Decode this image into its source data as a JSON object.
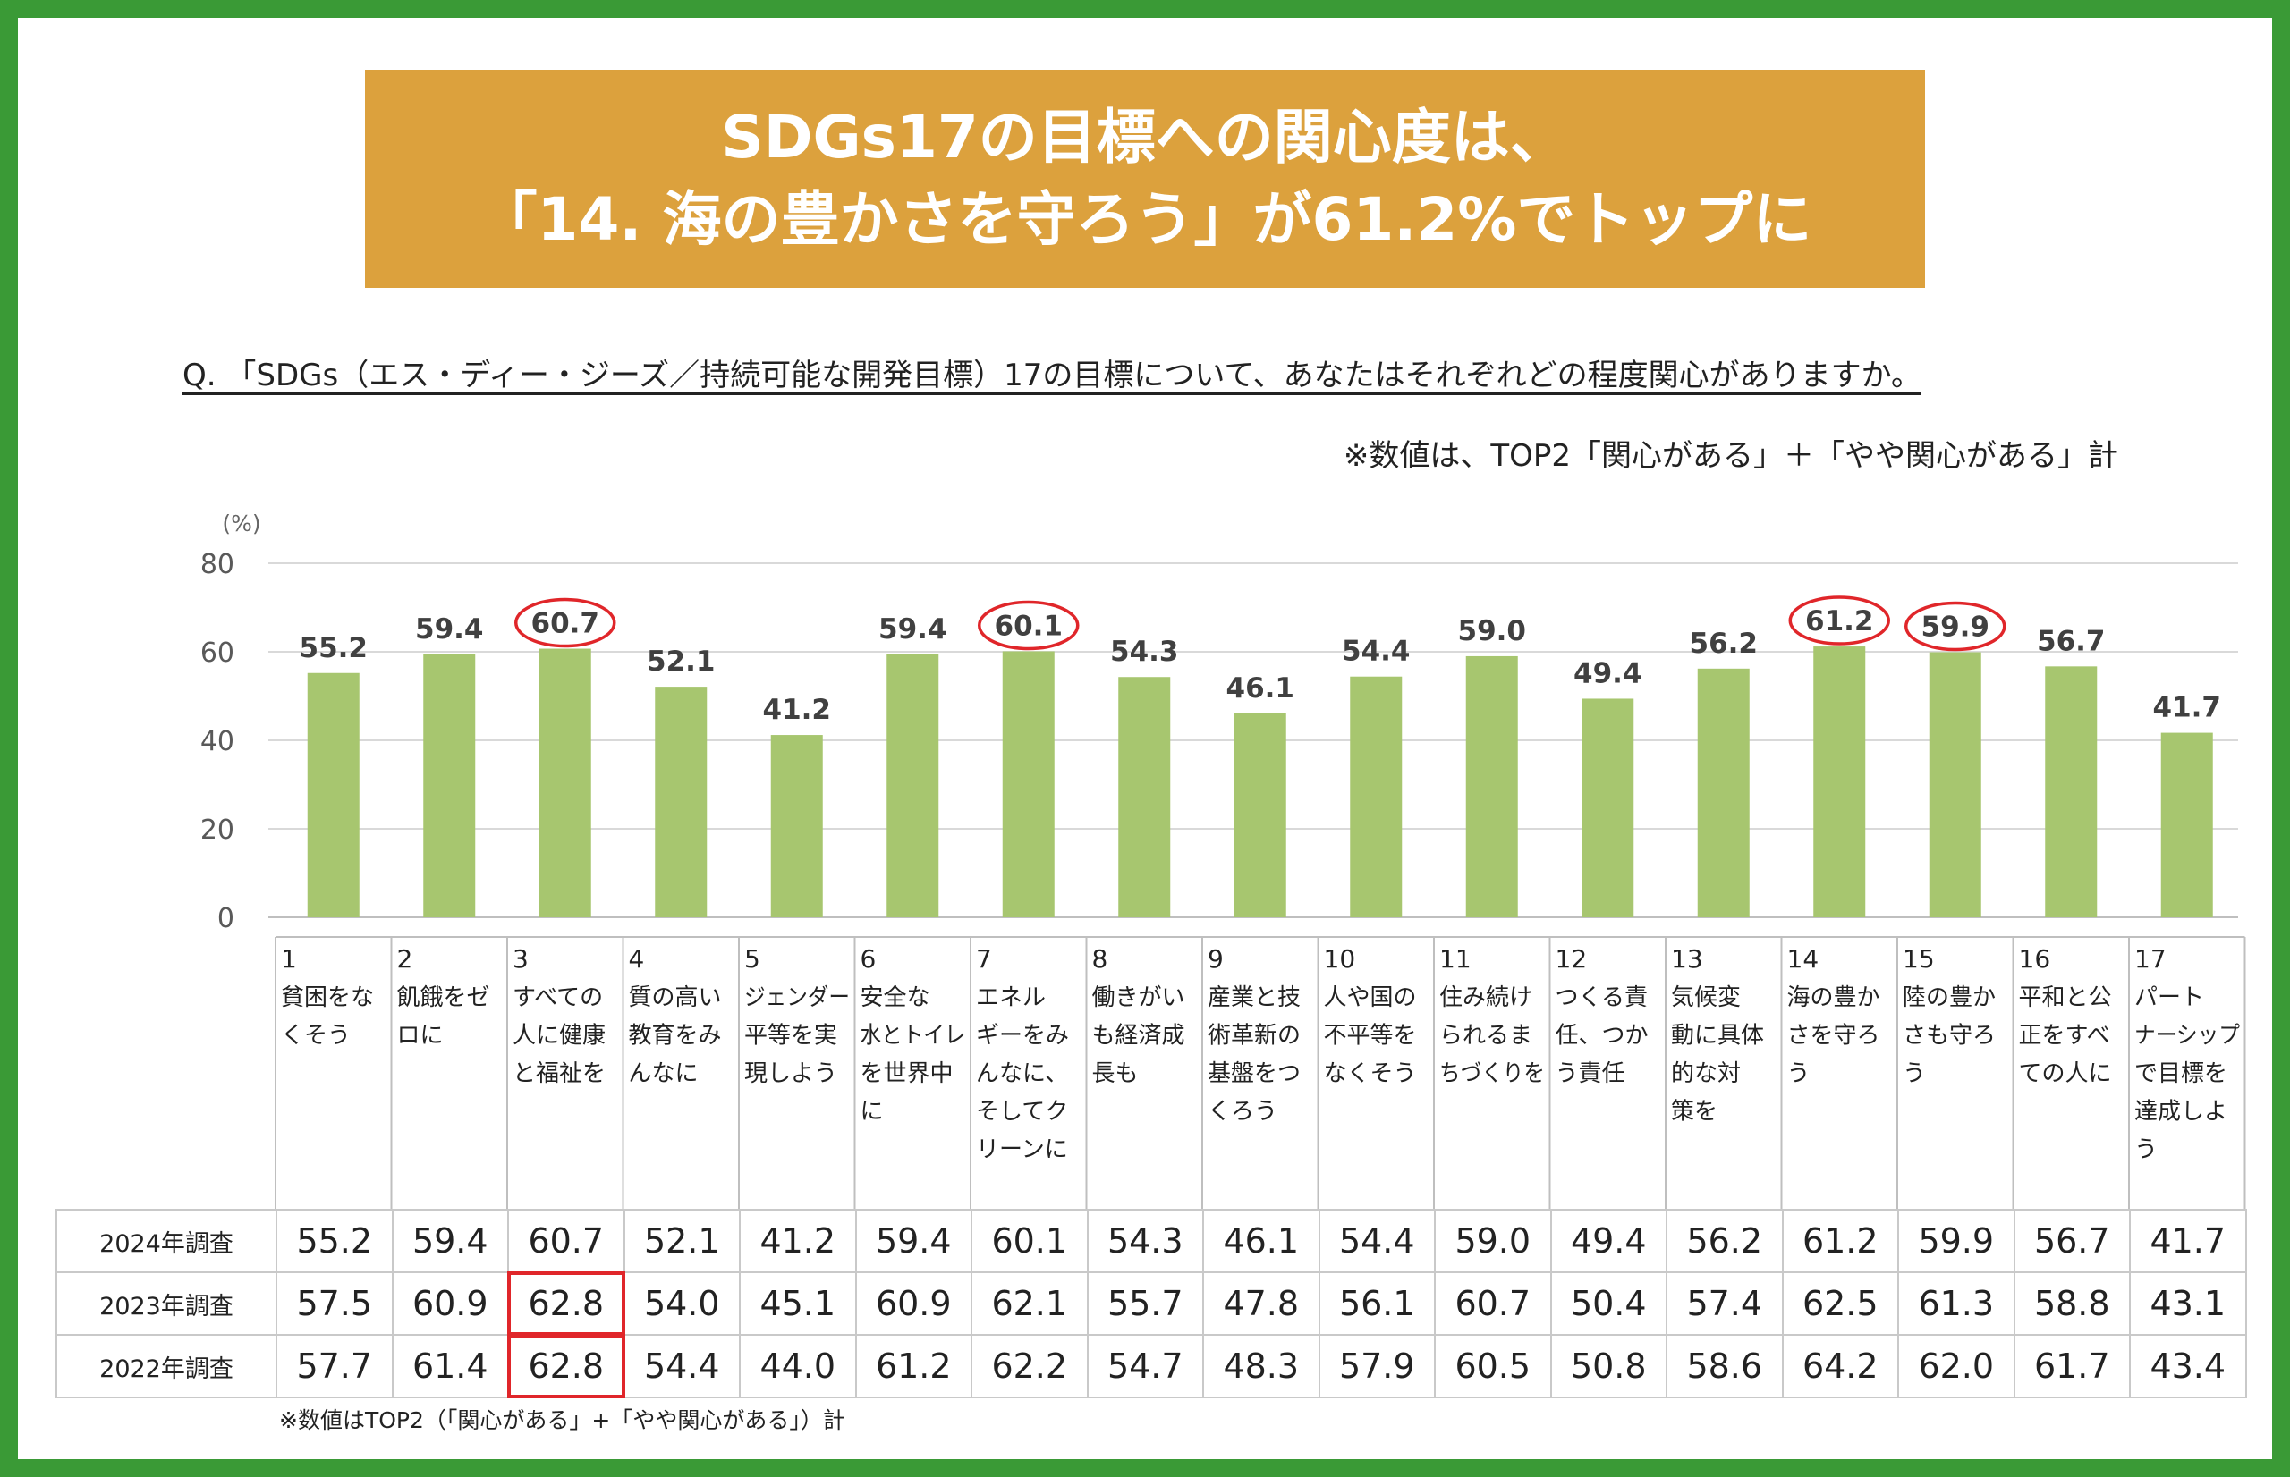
{
  "banner": {
    "line1": "SDGs17の目標への関心度は、",
    "line2": "「14. 海の豊かさを守ろう」が61.2%でトップに"
  },
  "question": "Q. 「SDGs（エス・ディー・ジーズ／持続可能な開発目標）17の目標について、あなたはそれぞれどの程度関心がありますか。",
  "note_top": "※数値は、TOP2「関心がある」＋「やや関心がある」計",
  "note_bottom": "※数値はTOP2（「関心がある」+「やや関心がある」）計",
  "colors": {
    "frame": "#3a9a36",
    "banner": "#dca13d",
    "bar": "#a7c66f",
    "highlight": "#e0262a"
  },
  "chart_data": {
    "type": "bar",
    "unit_label": "(%)",
    "ylim": [
      0,
      80
    ],
    "yticks": [
      0,
      20,
      40,
      60,
      80
    ],
    "grid": true,
    "categories": [
      {
        "num": "1",
        "lines": [
          "貧困をな",
          "くそう"
        ]
      },
      {
        "num": "2",
        "lines": [
          "飢餓をゼ",
          "ロに"
        ]
      },
      {
        "num": "3",
        "lines": [
          "すべての",
          "人に健康",
          "と福祉を"
        ]
      },
      {
        "num": "4",
        "lines": [
          "質の高い",
          "教育をみ",
          "んなに"
        ]
      },
      {
        "num": "5",
        "lines": [
          "ジェンダー",
          "平等を実",
          "現しよう"
        ]
      },
      {
        "num": "6",
        "lines": [
          "安全な",
          "水とトイレ",
          "を世界中",
          "に"
        ]
      },
      {
        "num": "7",
        "lines": [
          "エネル",
          "ギーをみ",
          "んなに、",
          "そしてク",
          "リーンに"
        ]
      },
      {
        "num": "8",
        "lines": [
          "働きがい",
          "も経済成",
          "長も"
        ]
      },
      {
        "num": "9",
        "lines": [
          "産業と技",
          "術革新の",
          "基盤をつ",
          "くろう"
        ]
      },
      {
        "num": "10",
        "lines": [
          "人や国の",
          "不平等を",
          "なくそう"
        ]
      },
      {
        "num": "11",
        "lines": [
          "住み続け",
          "られるま",
          "ちづくりを"
        ]
      },
      {
        "num": "12",
        "lines": [
          "つくる責",
          "任、つか",
          "う責任"
        ]
      },
      {
        "num": "13",
        "lines": [
          "気候変",
          "動に具体",
          "的な対",
          "策を"
        ]
      },
      {
        "num": "14",
        "lines": [
          "海の豊か",
          "さを守ろ",
          "う"
        ]
      },
      {
        "num": "15",
        "lines": [
          "陸の豊か",
          "さも守ろ",
          "う"
        ]
      },
      {
        "num": "16",
        "lines": [
          "平和と公",
          "正をすべ",
          "ての人に"
        ]
      },
      {
        "num": "17",
        "lines": [
          "パート",
          "ナーシップ",
          "で目標を",
          "達成しよ",
          "う"
        ]
      }
    ],
    "values": [
      55.2,
      59.4,
      60.7,
      52.1,
      41.2,
      59.4,
      60.1,
      54.3,
      46.1,
      54.4,
      59.0,
      49.4,
      56.2,
      61.2,
      59.9,
      56.7,
      41.7
    ],
    "circled_indices": [
      2,
      6,
      13,
      14
    ]
  },
  "table": {
    "rows": [
      {
        "label": "2024年調査",
        "values": [
          "55.2",
          "59.4",
          "60.7",
          "52.1",
          "41.2",
          "59.4",
          "60.1",
          "54.3",
          "46.1",
          "54.4",
          "59.0",
          "49.4",
          "56.2",
          "61.2",
          "59.9",
          "56.7",
          "41.7"
        ]
      },
      {
        "label": "2023年調査",
        "values": [
          "57.5",
          "60.9",
          "62.8",
          "54.0",
          "45.1",
          "60.9",
          "62.1",
          "55.7",
          "47.8",
          "56.1",
          "60.7",
          "50.4",
          "57.4",
          "62.5",
          "61.3",
          "58.8",
          "43.1"
        ]
      },
      {
        "label": "2022年調査",
        "values": [
          "57.7",
          "61.4",
          "62.8",
          "54.4",
          "44.0",
          "61.2",
          "62.2",
          "54.7",
          "48.3",
          "57.9",
          "60.5",
          "50.8",
          "58.6",
          "64.2",
          "62.0",
          "61.7",
          "43.4"
        ]
      }
    ],
    "highlight_cells": [
      [
        1,
        2
      ],
      [
        2,
        2
      ]
    ]
  }
}
